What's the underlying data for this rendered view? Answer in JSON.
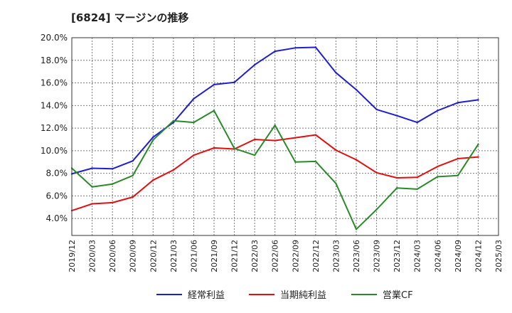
{
  "chart_data": {
    "type": "line",
    "title": "[6824]  マージンの推移",
    "xlabel": "",
    "ylabel": "",
    "ylim": [
      2.5,
      20
    ],
    "y_ticks": [
      "4.0%",
      "6.0%",
      "8.0%",
      "10.0%",
      "12.0%",
      "14.0%",
      "16.0%",
      "18.0%",
      "20.0%"
    ],
    "x_ticks": [
      "2019/12",
      "2020/03",
      "2020/06",
      "2020/09",
      "2020/12",
      "2021/03",
      "2021/06",
      "2021/09",
      "2021/12",
      "2022/03",
      "2022/06",
      "2022/09",
      "2022/12",
      "2023/03",
      "2023/06",
      "2023/09",
      "2023/12",
      "2024/03",
      "2024/06",
      "2024/09",
      "2024/12",
      "2025/03"
    ],
    "x": [
      "2019/12",
      "2020/03",
      "2020/06",
      "2020/09",
      "2020/12",
      "2021/03",
      "2021/06",
      "2021/09",
      "2021/12",
      "2022/03",
      "2022/06",
      "2022/09",
      "2022/12",
      "2023/03",
      "2023/06",
      "2023/09",
      "2023/12",
      "2024/03",
      "2024/06",
      "2024/09",
      "2024/12"
    ],
    "grid": true,
    "legend_position": "bottom",
    "series": [
      {
        "name": "経常利益",
        "color": "#1f1fd0",
        "values": [
          7.95,
          8.45,
          8.4,
          9.1,
          11.2,
          12.5,
          14.6,
          15.85,
          16.05,
          17.6,
          18.8,
          19.1,
          19.15,
          16.9,
          15.4,
          13.65,
          13.1,
          12.5,
          13.55,
          14.25,
          14.5
        ]
      },
      {
        "name": "当期純利益",
        "color": "#e01010",
        "values": [
          4.7,
          5.3,
          5.4,
          5.9,
          7.4,
          8.3,
          9.6,
          10.25,
          10.15,
          11.0,
          10.9,
          11.15,
          11.4,
          10.05,
          9.2,
          8.05,
          7.6,
          7.65,
          8.6,
          9.3,
          9.45
        ]
      },
      {
        "name": "営業CF",
        "color": "#2a8a2a",
        "values": [
          8.45,
          6.8,
          7.05,
          7.8,
          10.95,
          12.65,
          12.5,
          13.55,
          10.2,
          9.6,
          12.25,
          9.0,
          9.05,
          7.1,
          3.05,
          4.8,
          6.7,
          6.6,
          7.7,
          7.8,
          10.55
        ]
      }
    ]
  }
}
